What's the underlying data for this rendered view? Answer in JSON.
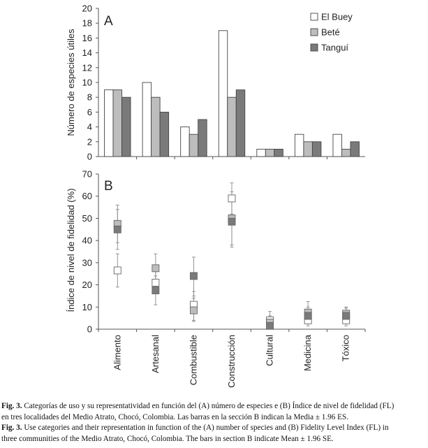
{
  "chart_data": [
    {
      "panel": "A",
      "type": "bar",
      "ylabel": "Número de especies útiles",
      "ylim": [
        0,
        20
      ],
      "yticks": [
        0,
        2,
        4,
        6,
        8,
        10,
        12,
        14,
        16,
        18,
        20
      ],
      "categories": [
        "Alimento",
        "Artesanal",
        "Combustible",
        "Construcción",
        "Cultural",
        "Medicina",
        "Tóxico"
      ],
      "series": [
        {
          "name": "El Buey",
          "color": "#ffffff",
          "values": [
            9,
            10,
            4,
            17,
            1,
            3,
            3
          ]
        },
        {
          "name": "Beté",
          "color": "#bdbdbd",
          "values": [
            9,
            8,
            3,
            8,
            1,
            2,
            1
          ]
        },
        {
          "name": "Tanguí",
          "color": "#7a7a7a",
          "values": [
            8,
            6,
            5,
            9,
            1,
            2,
            2
          ]
        }
      ],
      "legend_position": "top-right",
      "grid": false
    },
    {
      "panel": "B",
      "type": "scatter",
      "ylabel": "Índice de nivel de fidelidad (%)",
      "ylim": [
        0,
        70
      ],
      "yticks": [
        0,
        10,
        20,
        30,
        40,
        50,
        60,
        70
      ],
      "categories": [
        "Alimento",
        "Artesanal",
        "Combustible",
        "Construcción",
        "Cultural",
        "Medicina",
        "Tóxico"
      ],
      "series": [
        {
          "name": "El Buey",
          "color": "#ffffff",
          "values": [
            26.5,
            21,
            11,
            59,
            4,
            4,
            4
          ],
          "lower": [
            19,
            16,
            4,
            52,
            1,
            1.5,
            1.5
          ],
          "upper": [
            34,
            26,
            17,
            66,
            8,
            7,
            7
          ]
        },
        {
          "name": "Beté",
          "color": "#bdbdbd",
          "values": [
            47.5,
            27.5,
            8.5,
            50,
            3,
            7.5,
            7
          ],
          "lower": [
            39,
            21,
            3.5,
            38,
            0.5,
            3,
            2.5
          ],
          "upper": [
            56,
            34,
            14,
            62,
            6,
            12.5,
            10
          ]
        },
        {
          "name": "Tanguí",
          "color": "#7a7a7a",
          "values": [
            45,
            17.5,
            24,
            48.5,
            1.5,
            6,
            6
          ],
          "lower": [
            36,
            11,
            15,
            37,
            0,
            3,
            2.5
          ],
          "upper": [
            54,
            24,
            32.5,
            60,
            4,
            10,
            9.5
          ]
        }
      ],
      "grid": false
    }
  ],
  "caption": {
    "es": {
      "label": "Fig. 3.",
      "text": "Categorías de uso y su representatividad en función del (A) número de especies e (B) Índice de nivel de fidelidad (FL)",
      "text2": "en tres localidades del Medio Atrato, Chocó, Colombia. Las barras en la sección B indican la Media ± 1.96 ES."
    },
    "en": {
      "label": "Fig. 3.",
      "text": "Use categories and their representation in function of the (A) number of species and (B) Fidelity Level Index (FL) in",
      "text2": "three communities of the Medio Atrato, Chocó, Colombia. The bars in section B indicate Mean ± 1.96 SE."
    }
  }
}
